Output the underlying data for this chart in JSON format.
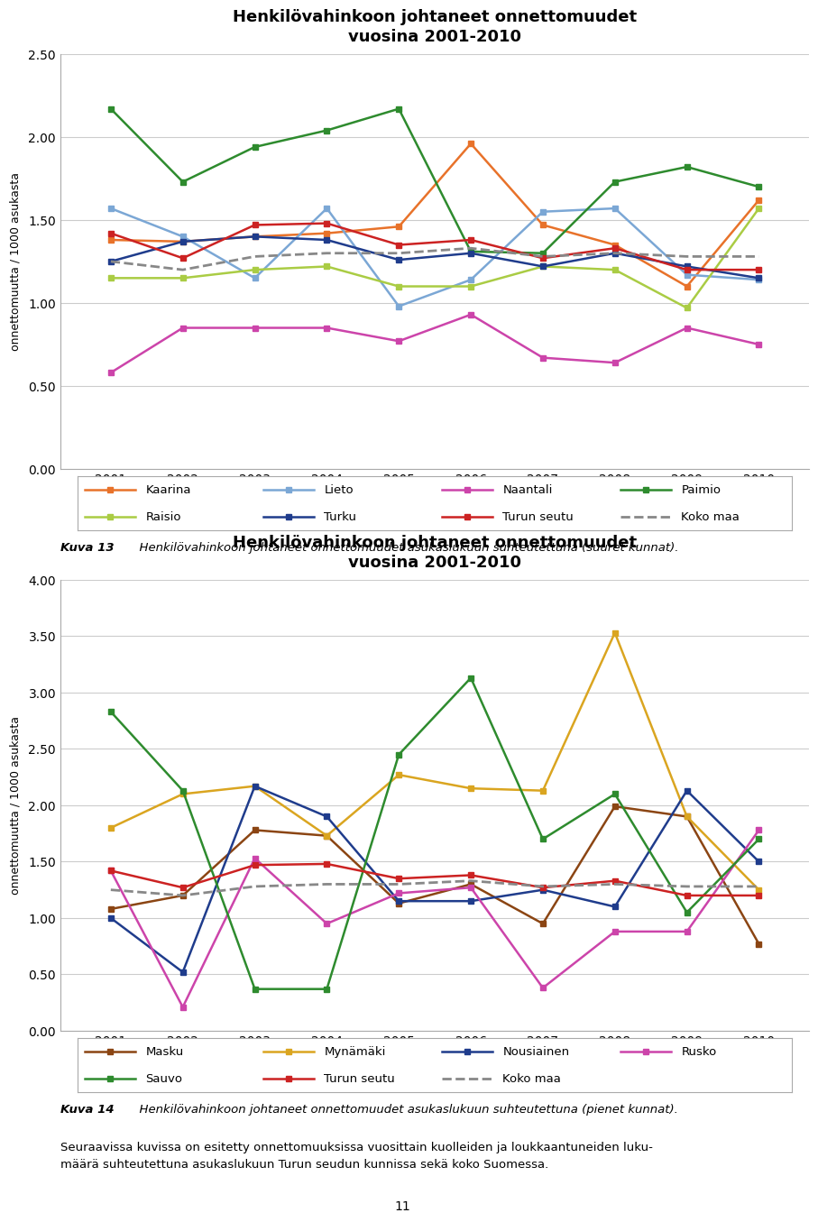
{
  "years": [
    2001,
    2002,
    2003,
    2004,
    2005,
    2006,
    2007,
    2008,
    2009,
    2010
  ],
  "title": "Henkilövahinkoon johtaneet onnettomuudet\nvuosina 2001-2010",
  "ylabel": "onnettomuutta / 1000 asukasta",
  "chart1": {
    "series": {
      "Kaarina": [
        1.38,
        1.37,
        1.4,
        1.42,
        1.46,
        1.96,
        1.47,
        1.35,
        1.1,
        1.62
      ],
      "Lieto": [
        1.57,
        1.4,
        1.15,
        1.57,
        0.98,
        1.14,
        1.55,
        1.57,
        1.17,
        1.14
      ],
      "Naantali": [
        0.58,
        0.85,
        0.85,
        0.85,
        0.77,
        0.93,
        0.67,
        0.64,
        0.85,
        0.75
      ],
      "Paimio": [
        2.17,
        1.73,
        1.94,
        2.04,
        2.17,
        1.31,
        1.3,
        1.73,
        1.82,
        1.7
      ],
      "Raisio": [
        1.15,
        1.15,
        1.2,
        1.22,
        1.1,
        1.1,
        1.22,
        1.2,
        0.97,
        1.57
      ],
      "Turku": [
        1.25,
        1.37,
        1.4,
        1.38,
        1.26,
        1.3,
        1.22,
        1.3,
        1.22,
        1.15
      ],
      "Turun seutu": [
        1.42,
        1.27,
        1.47,
        1.48,
        1.35,
        1.38,
        1.27,
        1.33,
        1.2,
        1.2
      ],
      "Koko maa": [
        1.25,
        1.2,
        1.28,
        1.3,
        1.3,
        1.33,
        1.28,
        1.3,
        1.28,
        1.28
      ]
    },
    "colors": {
      "Kaarina": "#E8722A",
      "Lieto": "#7BA7D5",
      "Naantali": "#CC44AA",
      "Paimio": "#2E8B2E",
      "Raisio": "#AACC44",
      "Turku": "#1F3C8C",
      "Turun seutu": "#CC2222",
      "Koko maa": "#888888"
    },
    "legend_rows": [
      [
        [
          "Kaarina",
          "-"
        ],
        [
          "Lieto",
          "-"
        ],
        [
          "Naantali",
          "-"
        ],
        [
          "Paimio",
          "-"
        ]
      ],
      [
        [
          "Raisio",
          "-"
        ],
        [
          "Turku",
          "-"
        ],
        [
          "Turun seutu",
          "-"
        ],
        [
          "Koko maa",
          "--"
        ]
      ]
    ],
    "ylim": [
      0.0,
      2.5
    ],
    "yticks": [
      0.0,
      0.5,
      1.0,
      1.5,
      2.0,
      2.5
    ]
  },
  "chart2": {
    "series": {
      "Masku": [
        1.08,
        1.2,
        1.78,
        1.73,
        1.13,
        1.3,
        0.95,
        1.99,
        1.9,
        0.77
      ],
      "Mynämäki": [
        1.8,
        2.1,
        2.17,
        1.73,
        2.27,
        2.15,
        2.13,
        3.53,
        1.9,
        1.25
      ],
      "Nousiainen": [
        1.0,
        0.52,
        2.17,
        1.9,
        1.15,
        1.15,
        1.25,
        1.1,
        2.13,
        1.5
      ],
      "Rusko": [
        1.42,
        0.21,
        1.53,
        0.95,
        1.22,
        1.27,
        0.38,
        0.88,
        0.88,
        1.78
      ],
      "Sauvo": [
        2.83,
        2.13,
        0.37,
        0.37,
        2.45,
        3.13,
        1.7,
        2.1,
        1.05,
        1.7
      ],
      "Turun seutu": [
        1.42,
        1.27,
        1.47,
        1.48,
        1.35,
        1.38,
        1.27,
        1.33,
        1.2,
        1.2
      ],
      "Koko maa": [
        1.25,
        1.2,
        1.28,
        1.3,
        1.3,
        1.33,
        1.28,
        1.3,
        1.28,
        1.28
      ]
    },
    "colors": {
      "Masku": "#8B4513",
      "Mynämäki": "#DAA520",
      "Nousiainen": "#1F3C8C",
      "Rusko": "#CC44AA",
      "Sauvo": "#2E8B2E",
      "Turun seutu": "#CC2222",
      "Koko maa": "#888888"
    },
    "legend_rows": [
      [
        [
          "Masku",
          "-"
        ],
        [
          "Mynämäki",
          "-"
        ],
        [
          "Nousiainen",
          "-"
        ],
        [
          "Rusko",
          "-"
        ]
      ],
      [
        [
          "Sauvo",
          "-"
        ],
        [
          "Turun seutu",
          "-"
        ],
        [
          "Koko maa",
          "--"
        ]
      ]
    ],
    "ylim": [
      0.0,
      4.0
    ],
    "yticks": [
      0.0,
      0.5,
      1.0,
      1.5,
      2.0,
      2.5,
      3.0,
      3.5,
      4.0
    ]
  },
  "caption1_bold": "Kuva 13",
  "caption1_italic": "      Henkilövahinkoon johtaneet onnettomuudet asukaslukuun suhteutettuna (suuret kunnat).",
  "caption2_bold": "Kuva 14",
  "caption2_italic": "      Henkilövahinkoon johtaneet onnettomuudet asukaslukuun suhteutettuna (pienet kunnat).",
  "footer_text": "Seuraavissa kuvissa on esitetty onnettomuuksissa vuosittain kuolleiden ja loukkaantuneiden luku-\nmäärä suhteutettuna asukaslukuun Turun seudun kunnissa sekä koko Suomessa.",
  "page_number": "11",
  "background_color": "#ffffff"
}
